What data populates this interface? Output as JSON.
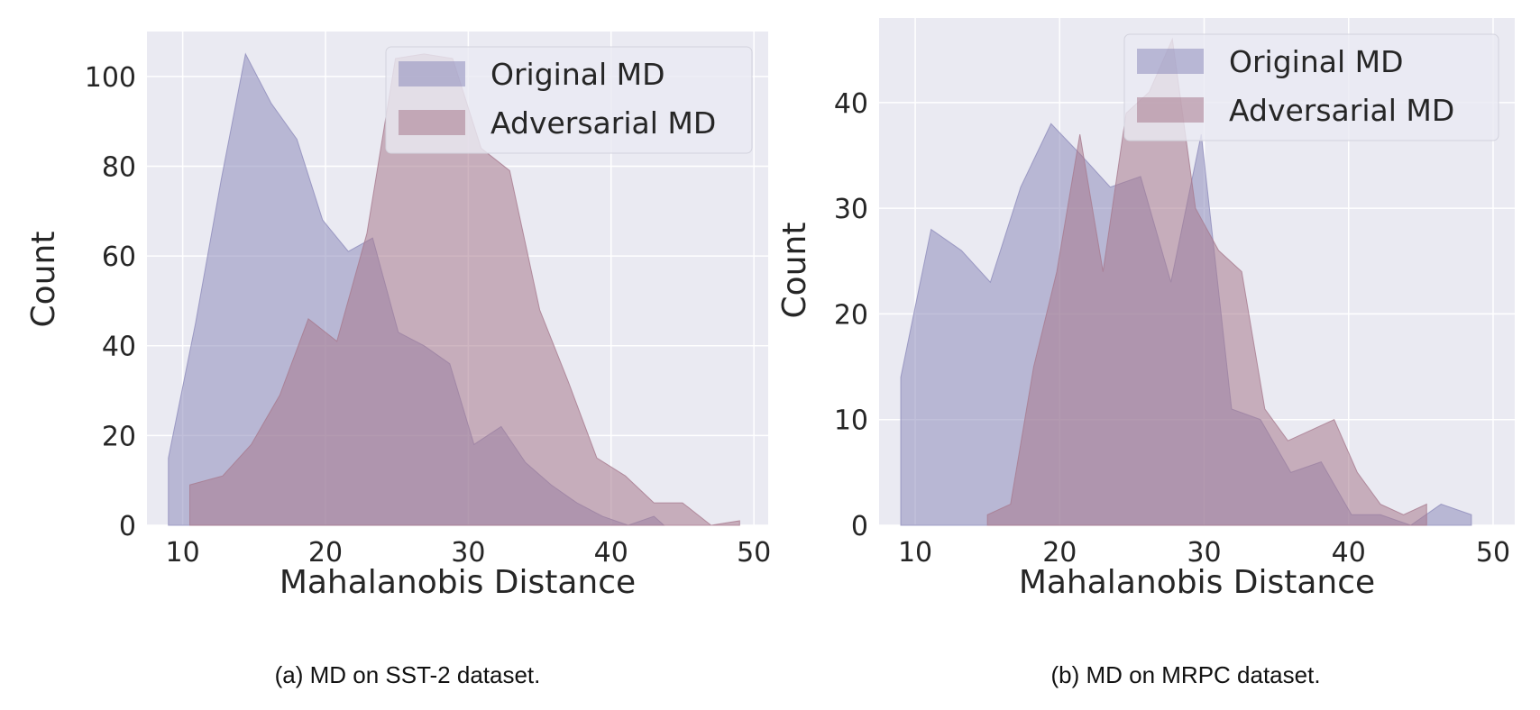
{
  "colors": {
    "plot_bg": "#eaeaf2",
    "grid": "#ffffff",
    "original": "#8e8cbc",
    "adversarial": "#a77a8e",
    "legend_bg": "#eaeaf2",
    "legend_border": "#d3d3dd"
  },
  "chart_data": [
    {
      "type": "area",
      "xlabel": "Mahalanobis Distance",
      "ylabel": "Count",
      "xlim": [
        7.5,
        51
      ],
      "ylim": [
        0,
        110
      ],
      "xticks": [
        10,
        20,
        30,
        40,
        50
      ],
      "yticks": [
        0,
        20,
        40,
        60,
        80,
        100
      ],
      "grid": true,
      "legend_placement": "top-right",
      "caption": "(a) MD on SST-2 dataset.",
      "series": [
        {
          "name": "Original MD",
          "color_key": "original",
          "x": [
            9,
            10.9,
            12.7,
            14.4,
            16.2,
            18.0,
            19.8,
            21.6,
            23.3,
            25.1,
            26.9,
            28.7,
            30.4,
            32.3,
            34.0,
            35.8,
            37.6,
            39.4,
            41.2,
            43.0,
            43.7
          ],
          "y": [
            15,
            45,
            77,
            105,
            94,
            86,
            68,
            61,
            64,
            43,
            40,
            36,
            18,
            22,
            14,
            9,
            5,
            2,
            0,
            2,
            0
          ]
        },
        {
          "name": "Adversarial MD",
          "color_key": "adversarial",
          "x": [
            10.5,
            12.8,
            14.8,
            16.8,
            18.8,
            20.8,
            22.9,
            24.9,
            26.9,
            28.9,
            30.9,
            32.9,
            35.0,
            37.0,
            39.0,
            41.0,
            43.0,
            45.0,
            47.0,
            49.0
          ],
          "y": [
            9,
            11,
            18,
            29,
            46,
            41,
            65,
            104,
            105,
            104,
            84,
            79,
            48,
            32,
            15,
            11,
            5,
            5,
            0,
            1
          ]
        }
      ]
    },
    {
      "type": "area",
      "xlabel": "Mahalanobis Distance",
      "ylabel": "Count",
      "xlim": [
        7.5,
        51.5
      ],
      "ylim": [
        0,
        48
      ],
      "xticks": [
        10,
        20,
        30,
        40,
        50
      ],
      "yticks": [
        0,
        10,
        20,
        30,
        40
      ],
      "grid": true,
      "legend_placement": "top-right",
      "caption": "(b) MD on MRPC dataset.",
      "series": [
        {
          "name": "Original MD",
          "color_key": "original",
          "x": [
            9,
            11.1,
            13.2,
            15.2,
            17.3,
            19.4,
            21.5,
            23.5,
            25.6,
            27.7,
            29.8,
            31.9,
            33.9,
            36.0,
            38.1,
            40.2,
            42.2,
            44.3,
            46.4,
            48.5
          ],
          "y": [
            14,
            28,
            26,
            23,
            32,
            38,
            35,
            32,
            33,
            23,
            37,
            11,
            10,
            5,
            6,
            1,
            1,
            0,
            2,
            1
          ]
        },
        {
          "name": "Adversarial MD",
          "color_key": "adversarial",
          "x": [
            15,
            16.6,
            18.2,
            19.8,
            21.4,
            23.0,
            24.6,
            26.2,
            27.8,
            29.4,
            31.0,
            32.6,
            34.2,
            35.8,
            37.4,
            39.0,
            40.6,
            42.2,
            43.8,
            45.4
          ],
          "y": [
            1,
            2,
            15,
            24,
            37,
            24,
            39,
            41,
            46,
            30,
            26,
            24,
            11,
            8,
            9,
            10,
            5,
            2,
            1,
            2
          ]
        }
      ]
    }
  ]
}
